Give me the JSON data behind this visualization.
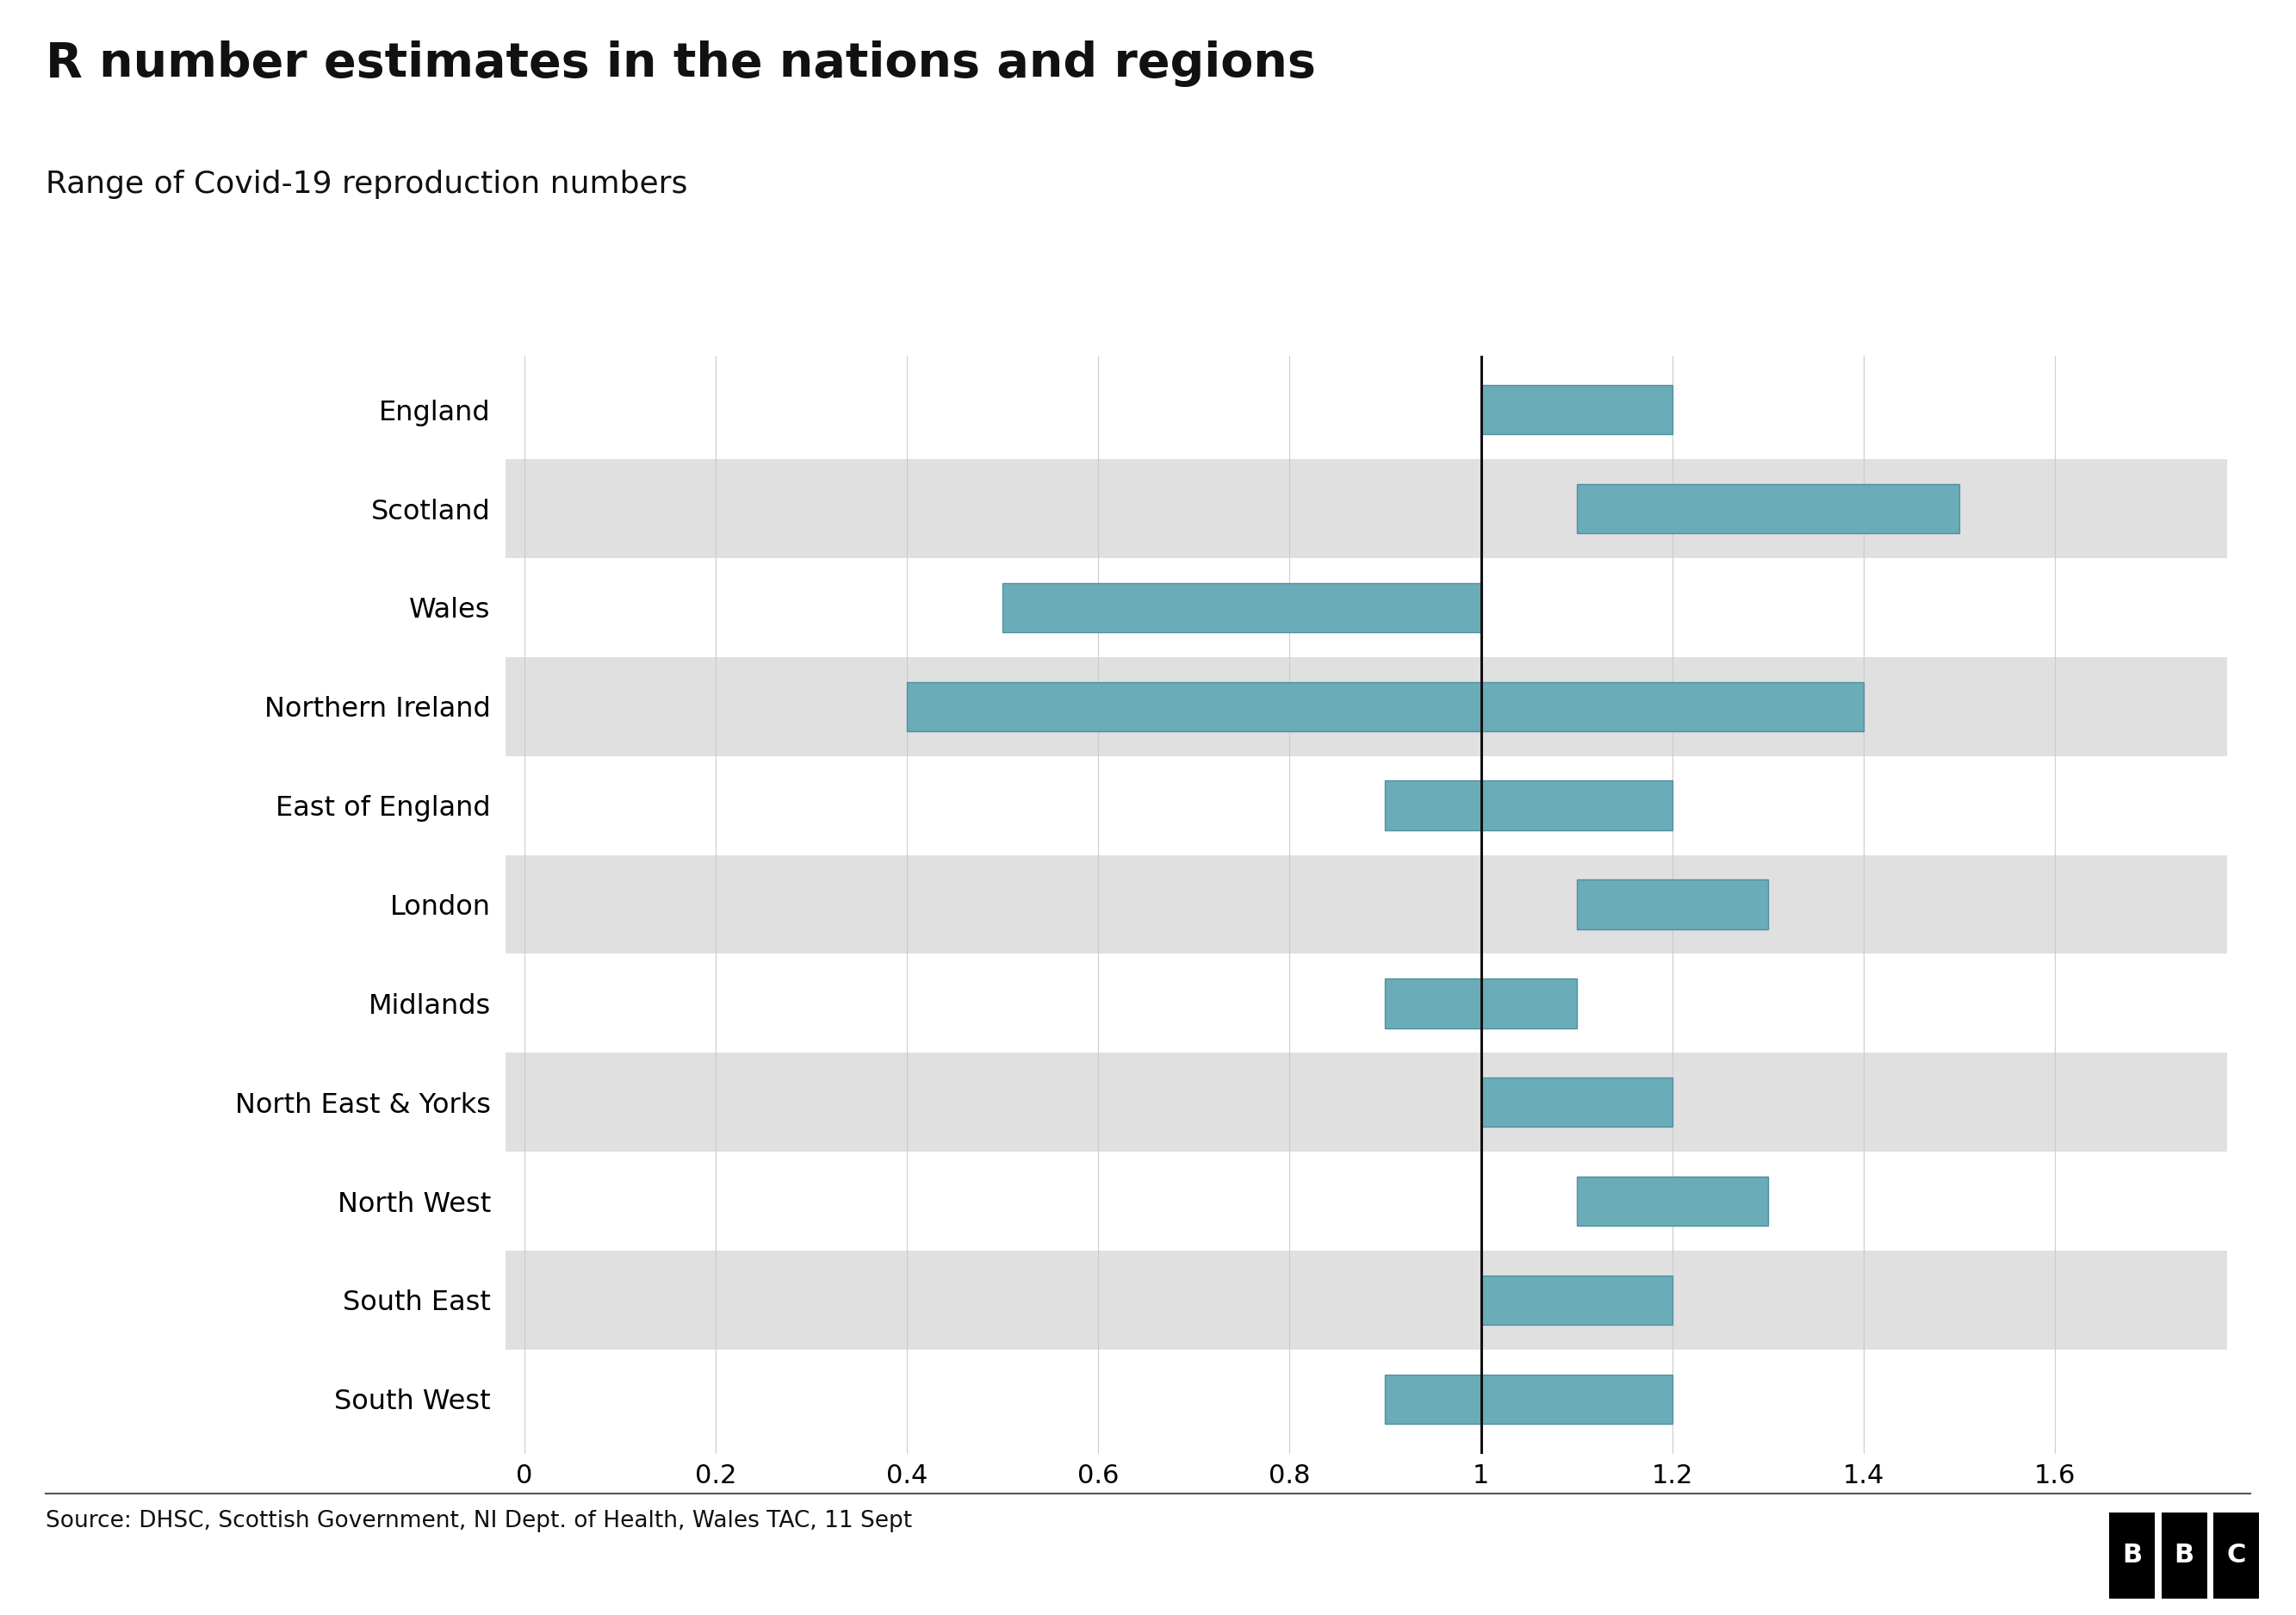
{
  "title": "R number estimates in the nations and regions",
  "subtitle": "Range of Covid-19 reproduction numbers",
  "source": "Source: DHSC, Scottish Government, NI Dept. of Health, Wales TAC, 11 Sept",
  "regions": [
    "England",
    "Scotland",
    "Wales",
    "Northern Ireland",
    "East of England",
    "London",
    "Midlands",
    "North East & Yorks",
    "North West",
    "South East",
    "South West"
  ],
  "ranges": [
    [
      1.0,
      1.2
    ],
    [
      1.1,
      1.5
    ],
    [
      0.5,
      1.0
    ],
    [
      0.4,
      1.4
    ],
    [
      0.9,
      1.2
    ],
    [
      1.1,
      1.3
    ],
    [
      0.9,
      1.1
    ],
    [
      1.0,
      1.2
    ],
    [
      1.1,
      1.3
    ],
    [
      1.0,
      1.2
    ],
    [
      0.9,
      1.2
    ]
  ],
  "bar_color": "#6aacb8",
  "bar_edgecolor": "#5090a0",
  "vline_x": 1.0,
  "vline_color": "#111111",
  "xlim": [
    -0.02,
    1.78
  ],
  "xticks": [
    0,
    0.2,
    0.4,
    0.6,
    0.8,
    1.0,
    1.2,
    1.4,
    1.6
  ],
  "xtick_labels": [
    "0",
    "0.2",
    "0.4",
    "0.6",
    "0.8",
    "1",
    "1.2",
    "1.4",
    "1.6"
  ],
  "background_color": "#ffffff",
  "stripe_color": "#e0e0e0",
  "bar_height": 0.5,
  "title_fontsize": 40,
  "subtitle_fontsize": 26,
  "tick_fontsize": 22,
  "label_fontsize": 23,
  "source_fontsize": 19,
  "grid_color": "#cccccc"
}
